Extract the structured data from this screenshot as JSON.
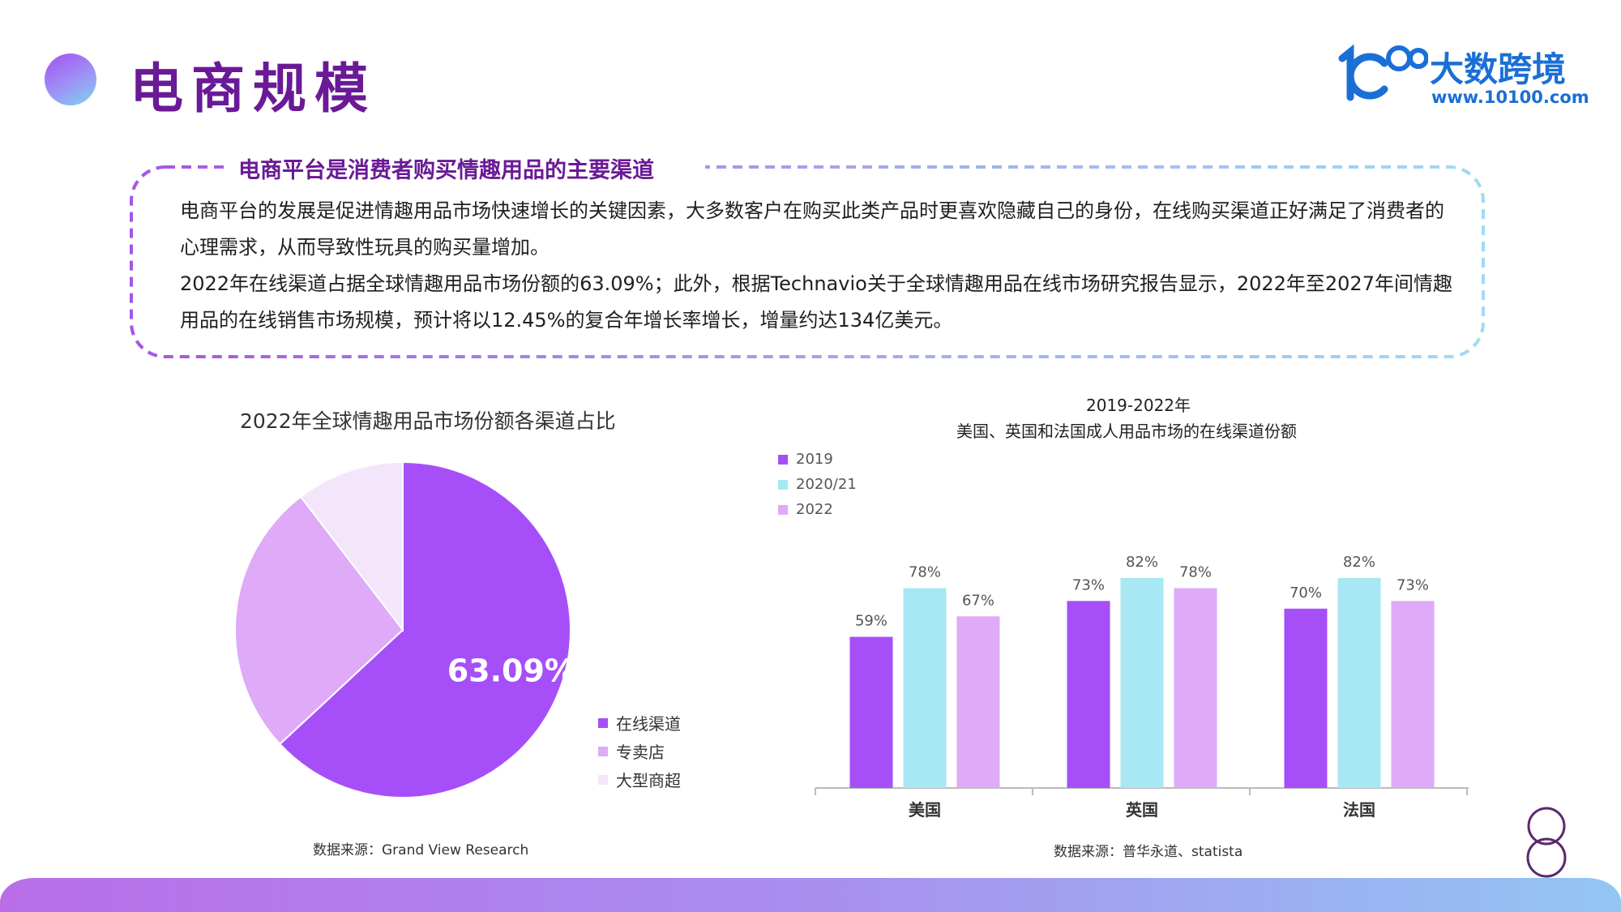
{
  "header": {
    "title": "电商规模",
    "logo_name": "大数跨境",
    "logo_url": "www.10100.com"
  },
  "summary": {
    "heading": "电商平台是消费者购买情趣用品的主要渠道",
    "paragraph1": "电商平台的发展是促进情趣用品市场快速增长的关键因素，大多数客户在购买此类产品时更喜欢隐藏自己的身份，在线购买渠道正好满足了消费者的心理需求，从而导致性玩具的购买量增加。",
    "paragraph2": "2022年在线渠道占据全球情趣用品市场份额的63.09%；此外，根据Technavio关于全球情趣用品在线市场研究报告显示，2022年至2027年间情趣用品的在线销售市场规模，预计将以12.45%的复合年增长率增长，增量约达134亿美元。"
  },
  "colors": {
    "primary_purple": "#a64ff9",
    "cyan": "#a8e8f5",
    "lavender": "#dfaaf8",
    "pale": "#f3e6fb",
    "title_purple": "#6a1a96"
  },
  "chart_data": [
    {
      "type": "pie",
      "title": "2022年全球情趣用品市场份额各渠道占比",
      "categories": [
        "在线渠道",
        "专卖店",
        "大型商超"
      ],
      "values": [
        63.09,
        26.5,
        10.41
      ],
      "colors": [
        "#a64ff9",
        "#dfaaf8",
        "#f3e6fb"
      ],
      "data_labels": [
        "63.09%",
        "",
        ""
      ],
      "legend": "bottom-right",
      "source": "数据来源：Grand View Research"
    },
    {
      "type": "bar",
      "title": "2019-2022年",
      "subtitle": "美国、英国和法国成人用品市场的在线渠道份额",
      "categories": [
        "美国",
        "英国",
        "法国"
      ],
      "series": [
        {
          "name": "2019",
          "values": [
            59,
            73,
            70
          ],
          "color": "#a64ff9"
        },
        {
          "name": "2020/21",
          "values": [
            78,
            82,
            82
          ],
          "color": "#a8e8f5"
        },
        {
          "name": "2022",
          "values": [
            67,
            78,
            73
          ],
          "color": "#dfaaf8"
        }
      ],
      "value_suffix": "%",
      "ylim": [
        0,
        100
      ],
      "grid": false,
      "legend": "top-left",
      "source": "数据来源：普华永道、statista"
    }
  ],
  "page_number": "8"
}
